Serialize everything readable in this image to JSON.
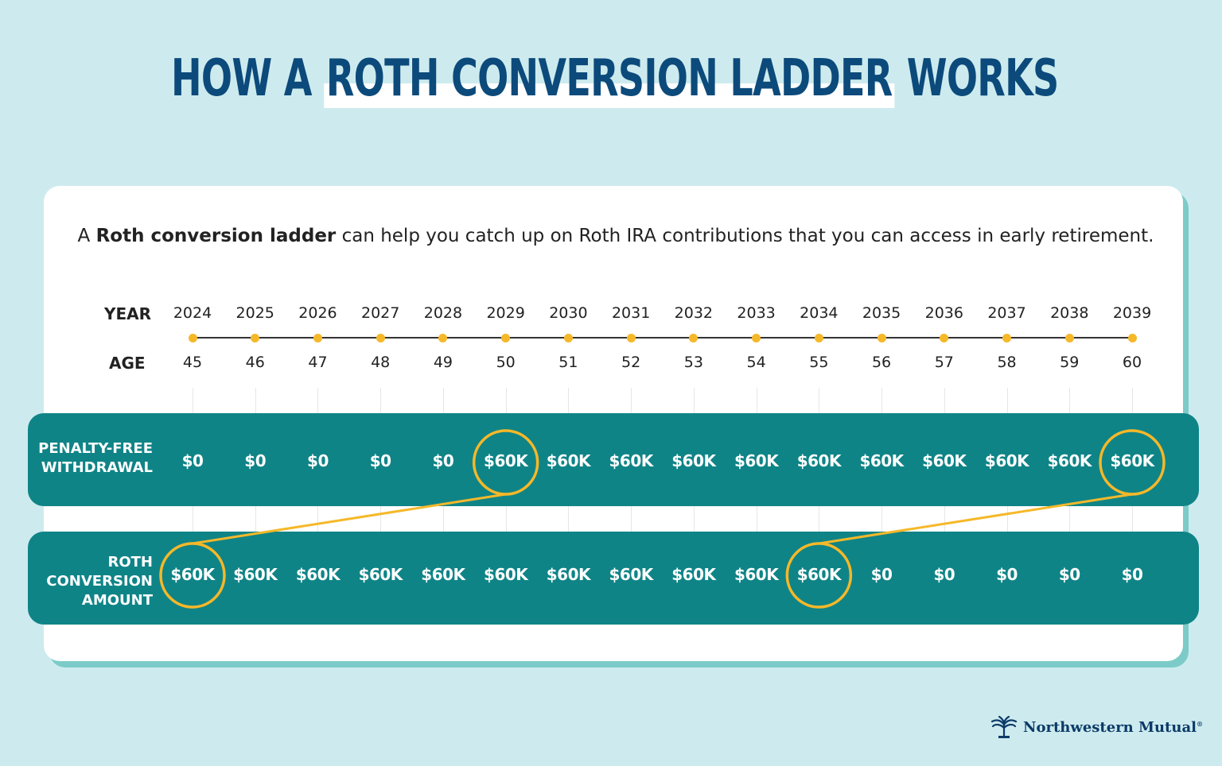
{
  "title": {
    "before": "HOW A ",
    "highlight": "ROTH CONVERSION LADDER",
    "after": " WORKS"
  },
  "intro": {
    "prefix": "A ",
    "bold": "Roth conversion ladder",
    "suffix": " can help you catch up on Roth IRA contributions that you can access in early retirement."
  },
  "labels": {
    "year": "YEAR",
    "age": "AGE",
    "withdrawal_line1": "PENALTY-FREE",
    "withdrawal_line2": "WITHDRAWAL",
    "conversion_line1": "ROTH",
    "conversion_line2": "CONVERSION",
    "conversion_line3": "AMOUNT"
  },
  "timeline": {
    "years": [
      "2024",
      "2025",
      "2026",
      "2027",
      "2028",
      "2029",
      "2030",
      "2031",
      "2032",
      "2033",
      "2034",
      "2035",
      "2036",
      "2037",
      "2038",
      "2039"
    ],
    "ages": [
      "45",
      "46",
      "47",
      "48",
      "49",
      "50",
      "51",
      "52",
      "53",
      "54",
      "55",
      "56",
      "57",
      "58",
      "59",
      "60"
    ],
    "penalty_free_withdrawal": [
      "$0",
      "$0",
      "$0",
      "$0",
      "$0",
      "$60K",
      "$60K",
      "$60K",
      "$60K",
      "$60K",
      "$60K",
      "$60K",
      "$60K",
      "$60K",
      "$60K",
      "$60K"
    ],
    "roth_conversion_amount": [
      "$60K",
      "$60K",
      "$60K",
      "$60K",
      "$60K",
      "$60K",
      "$60K",
      "$60K",
      "$60K",
      "$60K",
      "$60K",
      "$0",
      "$0",
      "$0",
      "$0",
      "$0"
    ],
    "highlight_links": [
      {
        "conversion_year": "2024",
        "withdrawal_year": "2029"
      },
      {
        "conversion_year": "2034",
        "withdrawal_year": "2039"
      }
    ]
  },
  "colors": {
    "background": "#cdebee",
    "title": "#0c4a7b",
    "band": "#0f8487",
    "accent": "#f5b829",
    "card_shadow": "#7ccbc9"
  },
  "brand": {
    "name": "Northwestern Mutual",
    "mark": "®",
    "icon": "tree-logo-icon"
  }
}
